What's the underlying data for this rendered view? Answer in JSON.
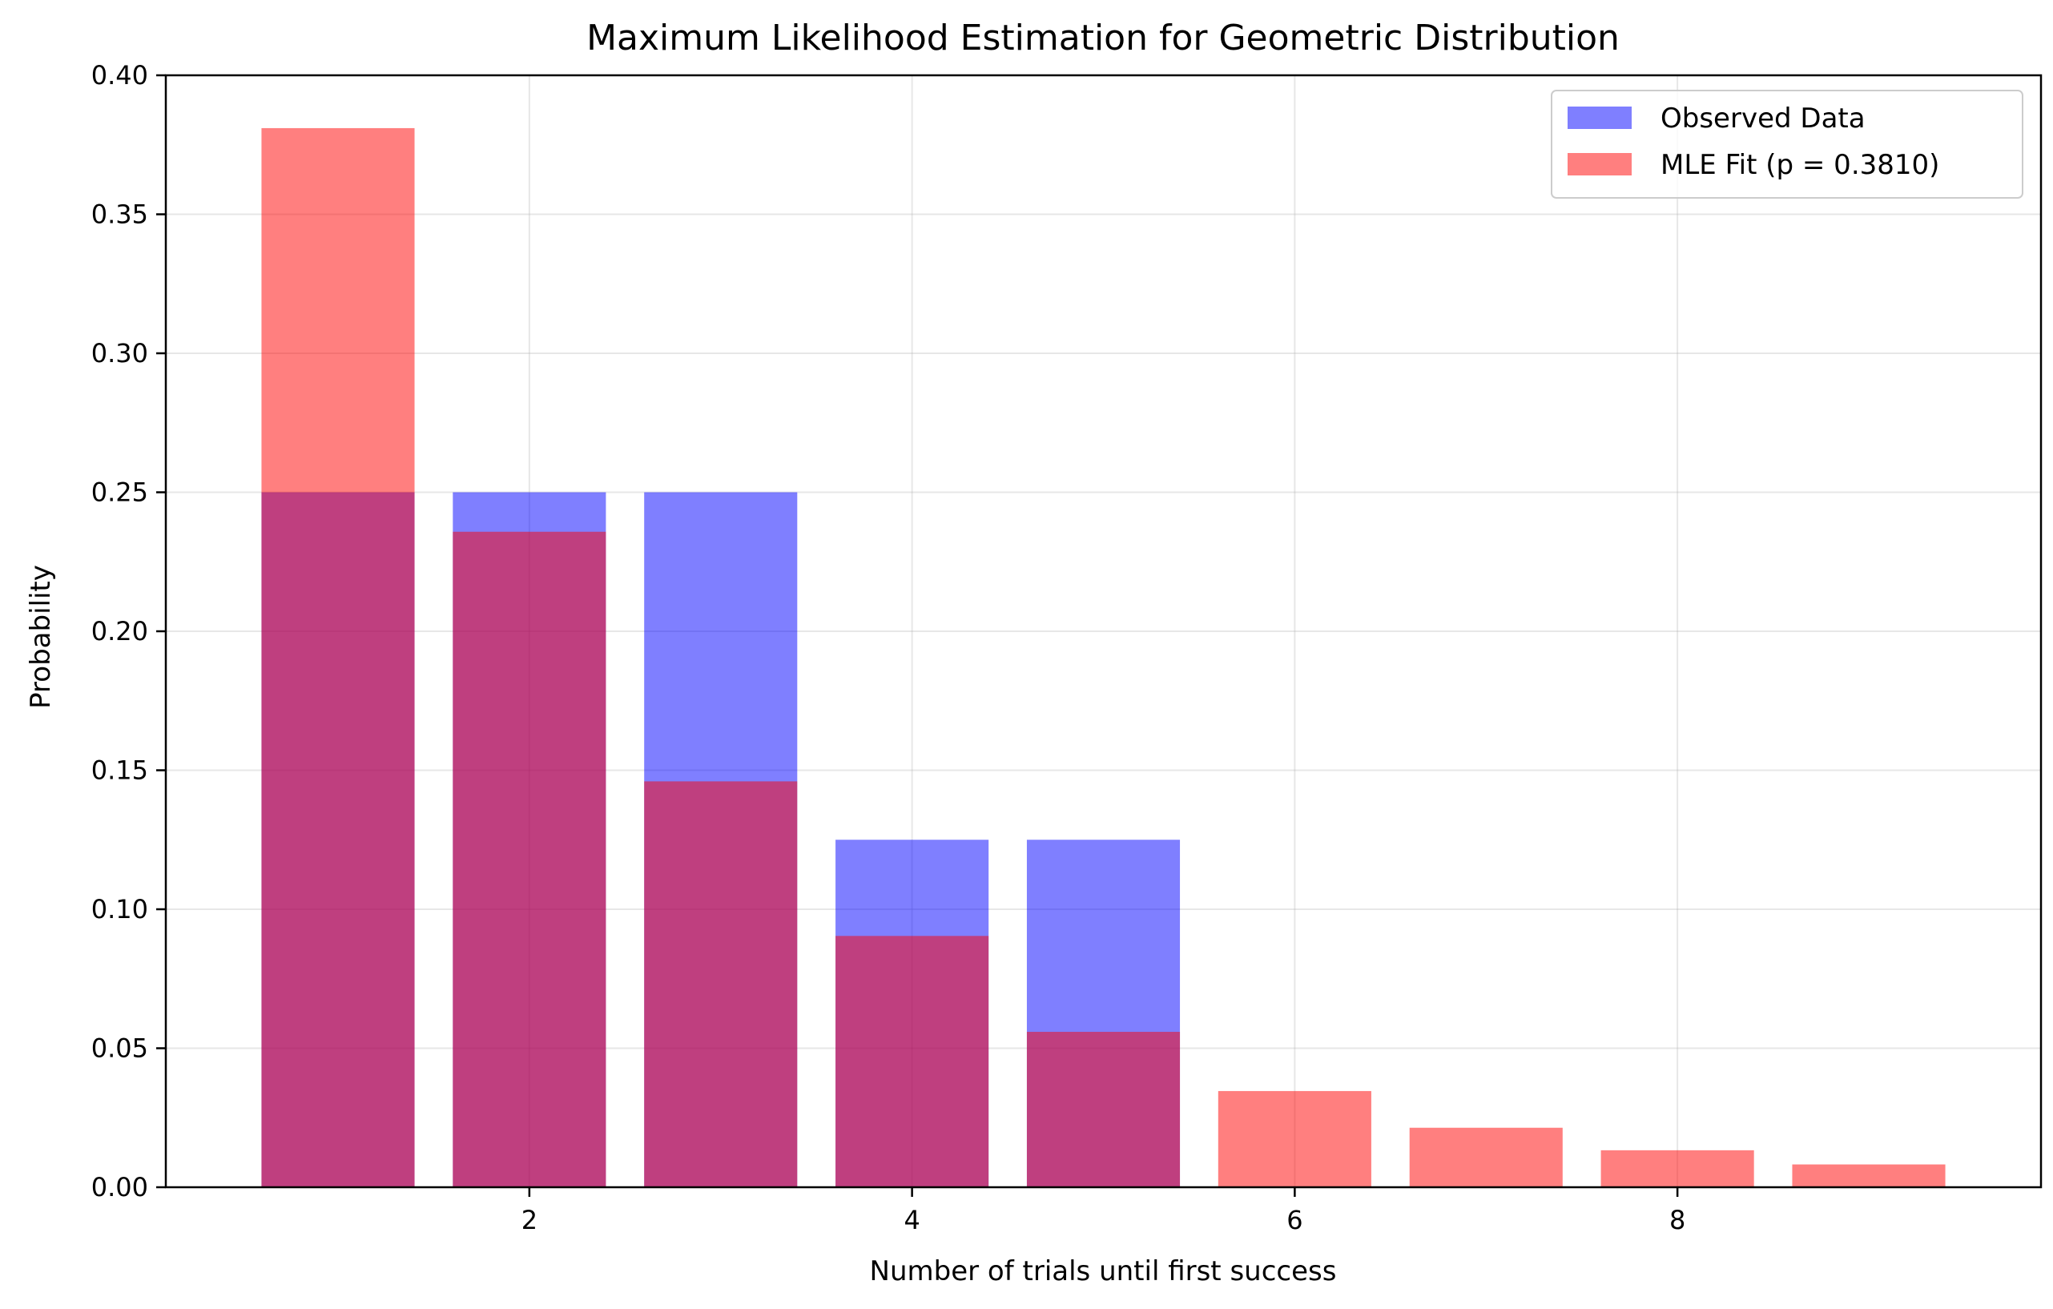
{
  "chart_data": {
    "type": "bar",
    "title": "Maximum Likelihood Estimation for Geometric Distribution",
    "xlabel": "Number of trials until first success",
    "ylabel": "Probability",
    "xlim": [
      0.1,
      9.9
    ],
    "ylim": [
      0,
      0.4
    ],
    "xticks": [
      2,
      4,
      6,
      8
    ],
    "yticks": [
      0.0,
      0.05,
      0.1,
      0.15,
      0.2,
      0.25,
      0.3,
      0.35,
      0.4
    ],
    "ytick_labels": [
      "0.00",
      "0.05",
      "0.10",
      "0.15",
      "0.20",
      "0.25",
      "0.30",
      "0.35",
      "0.40"
    ],
    "grid": true,
    "legend_position": "top-right",
    "series": [
      {
        "name": "Observed Data",
        "color": "#0000ff",
        "opacity": 0.5,
        "x": [
          1,
          2,
          3,
          4,
          5
        ],
        "values": [
          0.25,
          0.25,
          0.25,
          0.125,
          0.125
        ]
      },
      {
        "name": "MLE Fit (p = 0.3810)",
        "color": "#ff0000",
        "opacity": 0.5,
        "x": [
          1,
          2,
          3,
          4,
          5,
          6,
          7,
          8,
          9
        ],
        "values": [
          0.381,
          0.2358,
          0.146,
          0.0904,
          0.0559,
          0.0346,
          0.0214,
          0.0133,
          0.0082
        ]
      }
    ]
  }
}
